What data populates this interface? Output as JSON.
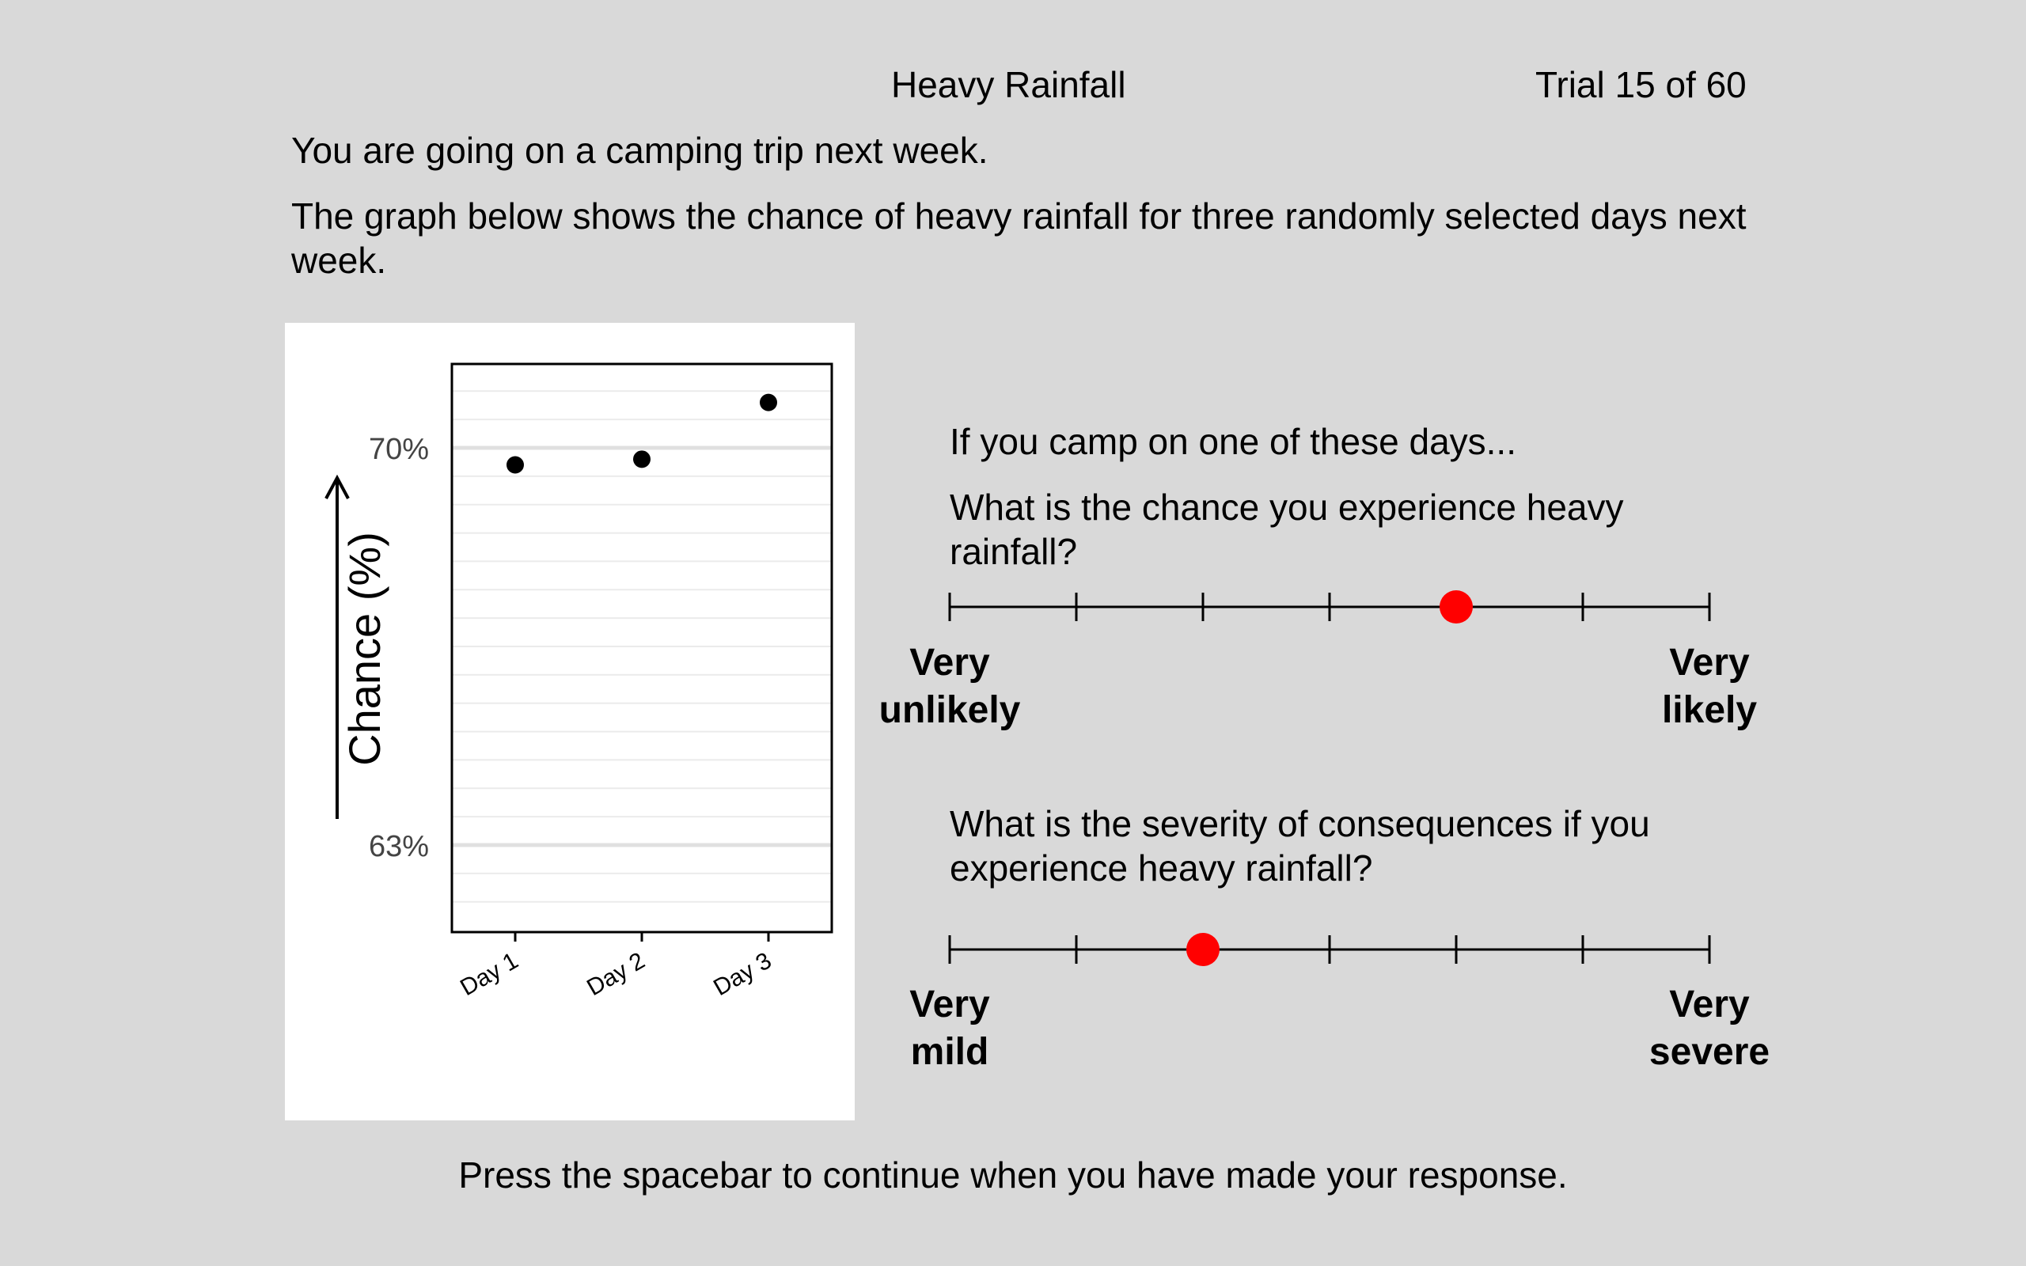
{
  "header": {
    "title": "Heavy Rainfall",
    "trial": "Trial 15 of 60"
  },
  "intro": {
    "line1": "You are going on a camping trip next week.",
    "line2": "The graph below shows the chance of heavy rainfall for three randomly selected days next week."
  },
  "chart_data": {
    "type": "scatter",
    "ylabel": "Chance (%)",
    "categories": [
      "Day 1",
      "Day 2",
      "Day 3"
    ],
    "values": [
      69.7,
      69.8,
      70.8
    ],
    "y_ticks": [
      {
        "value": 70,
        "label": "70%"
      },
      {
        "value": 63,
        "label": "63%"
      }
    ],
    "ylim": [
      62,
      71.5
    ],
    "grid": true
  },
  "question1": {
    "lead": "If you camp on one of these days...",
    "text": "What is the chance you experience heavy rainfall?",
    "anchor_left": [
      "Very",
      "unlikely"
    ],
    "anchor_right": [
      "Very",
      "likely"
    ],
    "points": 7,
    "selected": 5,
    "marker_color": "#ff0000"
  },
  "question2": {
    "text": "What is the severity of consequences if you experience heavy rainfall?",
    "anchor_left": [
      "Very",
      "mild"
    ],
    "anchor_right": [
      "Very",
      "severe"
    ],
    "points": 7,
    "selected": 3,
    "marker_color": "#ff0000"
  },
  "footer": {
    "text": "Press the spacebar to continue when you have made your response."
  }
}
